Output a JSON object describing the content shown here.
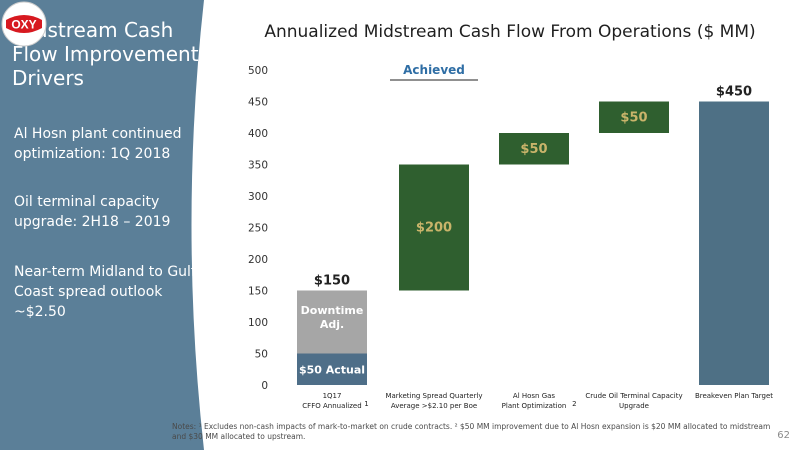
{
  "sidebar": {
    "title": "Midstream Cash Flow Improvement Drivers",
    "bullets": [
      "Al Hosn plant continued optimization: 1Q 2018",
      "Oil terminal capacity upgrade: 2H18 – 2019",
      "Near-term Midland to Gulf Coast spread outlook ~$2.50"
    ],
    "logo_text": "OXY"
  },
  "colors": {
    "sidebar_bg": "#5b7f98",
    "actual_bar": "#4e6e88",
    "downtime_bar": "#a6a6a6",
    "green_bar": "#2f5f2f",
    "target_bar": "#4e7085",
    "logo_red": "#d71920"
  },
  "footer": {
    "notes": "Notes: ¹ Excludes non-cash impacts of mark-to-market on crude contracts. ² $50 MM improvement due to Al Hosn expansion is $20 MM allocated to midstream and $30 MM allocated to upstream.",
    "page_number": "62"
  },
  "chart_data": {
    "type": "bar",
    "subtype": "waterfall",
    "title": "Annualized Midstream Cash Flow From Operations ($ MM)",
    "annotation": "Achieved",
    "ylim": [
      0,
      500
    ],
    "yticks": [
      0,
      50,
      100,
      150,
      200,
      250,
      300,
      350,
      400,
      450,
      500
    ],
    "grid": false,
    "categories": [
      {
        "line1": "1Q17",
        "line2": "CFFO Annualized",
        "sup": "1"
      },
      {
        "line1": "Marketing Spread Quarterly",
        "line2": "Average >$2.10 per Boe",
        "sup": ""
      },
      {
        "line1": "Al Hosn Gas",
        "line2": "Plant Optimization",
        "sup": "2"
      },
      {
        "line1": "Crude Oil Terminal Capacity",
        "line2": "Upgrade",
        "sup": ""
      },
      {
        "line1": "Breakeven Plan Target",
        "line2": "",
        "sup": ""
      }
    ],
    "bars": [
      {
        "segments": [
          {
            "start": 0,
            "end": 50,
            "label": "$50 Actual",
            "style": "actual"
          },
          {
            "start": 50,
            "end": 150,
            "label": "Downtime Adj.",
            "style": "downtime"
          }
        ],
        "top_label": "$150"
      },
      {
        "segments": [
          {
            "start": 150,
            "end": 350,
            "label": "$200",
            "style": "green"
          }
        ],
        "top_label": ""
      },
      {
        "segments": [
          {
            "start": 350,
            "end": 400,
            "label": "$50",
            "style": "green"
          }
        ],
        "top_label": ""
      },
      {
        "segments": [
          {
            "start": 400,
            "end": 450,
            "label": "$50",
            "style": "green"
          }
        ],
        "top_label": ""
      },
      {
        "segments": [
          {
            "start": 0,
            "end": 450,
            "label": "",
            "style": "target"
          }
        ],
        "top_label": "$450"
      }
    ]
  }
}
